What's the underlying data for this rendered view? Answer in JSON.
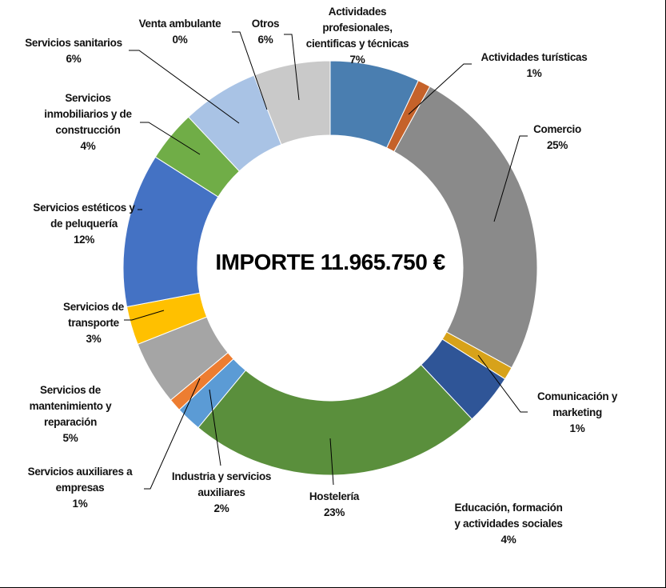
{
  "chart_data": {
    "type": "pie",
    "donut": true,
    "center_label": "IMPORTE 11.965.750 €",
    "categories": [
      "Actividades profesionales, cientificas y técnicas",
      "Actividades turísticas",
      "Comercio",
      "Comunicación y marketing",
      "Educación, formación y actividades sociales",
      "Hostelería",
      "Industria y servicios auxiliares",
      "Servicios auxiliares a empresas",
      "Servicios de mantenimiento y reparación",
      "Servicios de transporte",
      "Servicios estéticos y de peluquería",
      "Servicios inmobiliarios y de construcción",
      "Servicios sanitarios",
      "Venta ambulante",
      "Otros"
    ],
    "values": [
      7,
      1,
      25,
      1,
      4,
      23,
      2,
      1,
      5,
      3,
      12,
      4,
      6,
      0,
      6
    ],
    "colors": [
      "#4a7eb0",
      "#c5622a",
      "#8a8a8a",
      "#d7a21a",
      "#2f5597",
      "#5a8f3c",
      "#5b9bd5",
      "#ed7d31",
      "#a5a5a5",
      "#ffc000",
      "#4472c4",
      "#70ad47",
      "#a9c3e5",
      "#e0e0e0",
      "#c9c9c9"
    ],
    "data_labels": [
      {
        "lines": [
          "Actividades",
          "profesionales,",
          "cientificas y técnicas"
        ],
        "pct": "7%"
      },
      {
        "lines": [
          "Actividades turísticas"
        ],
        "pct": "1%"
      },
      {
        "lines": [
          "Comercio"
        ],
        "pct": "25%"
      },
      {
        "lines": [
          "Comunicación y",
          "marketing"
        ],
        "pct": "1%"
      },
      {
        "lines": [
          "Educación, formación",
          "y actividades sociales"
        ],
        "pct": "4%"
      },
      {
        "lines": [
          "Hostelería"
        ],
        "pct": "23%"
      },
      {
        "lines": [
          "Industria y servicios",
          "auxiliares"
        ],
        "pct": "2%"
      },
      {
        "lines": [
          "Servicios auxiliares a",
          "empresas"
        ],
        "pct": "1%"
      },
      {
        "lines": [
          "Servicios de",
          "mantenimiento y",
          "reparación"
        ],
        "pct": "5%"
      },
      {
        "lines": [
          "Servicios de",
          "transporte"
        ],
        "pct": "3%"
      },
      {
        "lines": [
          "Servicios estéticos y",
          "de peluquería"
        ],
        "pct": "12%"
      },
      {
        "lines": [
          "Servicios",
          "inmobiliarios y de",
          "construcción"
        ],
        "pct": "4%"
      },
      {
        "lines": [
          "Servicios sanitarios"
        ],
        "pct": "6%"
      },
      {
        "lines": [
          "Venta ambulante"
        ],
        "pct": "0%"
      },
      {
        "lines": [
          "Otros"
        ],
        "pct": "6%"
      }
    ],
    "legend": "none"
  }
}
